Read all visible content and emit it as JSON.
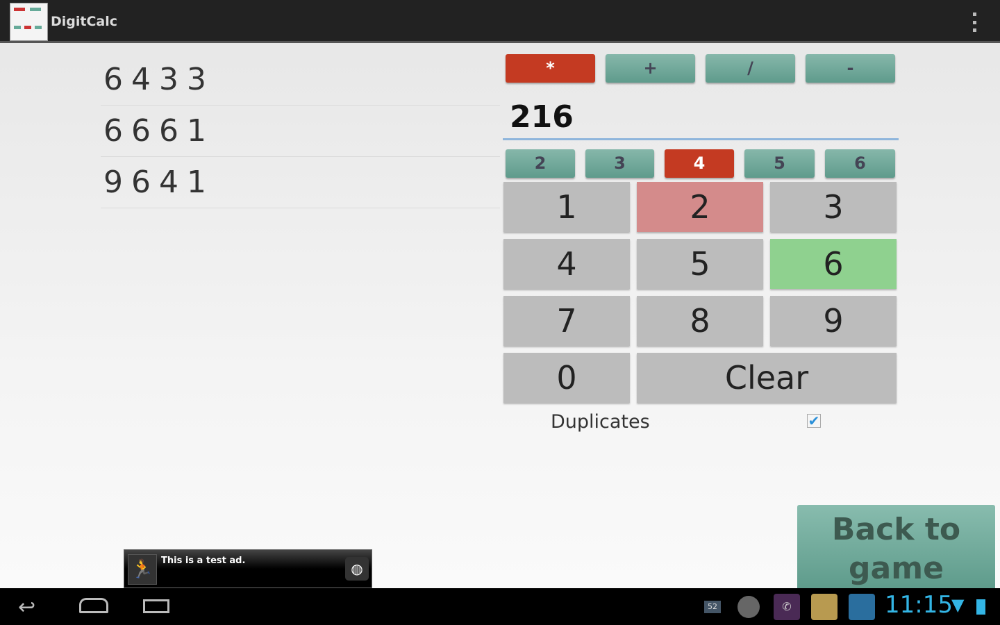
{
  "app": {
    "title": "DigitCalc"
  },
  "results": [
    "6433",
    "6661",
    "9641"
  ],
  "operators": [
    {
      "label": "*",
      "selected": true
    },
    {
      "label": "+",
      "selected": false
    },
    {
      "label": "/",
      "selected": false
    },
    {
      "label": "-",
      "selected": false
    }
  ],
  "target_input": {
    "value": "216"
  },
  "digit_counts": [
    {
      "label": "2",
      "selected": false
    },
    {
      "label": "3",
      "selected": false
    },
    {
      "label": "4",
      "selected": true
    },
    {
      "label": "5",
      "selected": false
    },
    {
      "label": "6",
      "selected": false
    }
  ],
  "keypad": {
    "keys": [
      "1",
      "2",
      "3",
      "4",
      "5",
      "6",
      "7",
      "8",
      "9",
      "0"
    ],
    "clear": "Clear",
    "highlight_red": "2",
    "highlight_green": "6"
  },
  "duplicates": {
    "label": "Duplicates",
    "checked": true
  },
  "back_button": "Back to game",
  "ad": {
    "text": "This is a test ad."
  },
  "status": {
    "time": "11:15",
    "notification_badge": "52"
  },
  "colors": {
    "selected": "#c43a22",
    "teal": "#6fa898",
    "accent": "#33b5e5"
  }
}
